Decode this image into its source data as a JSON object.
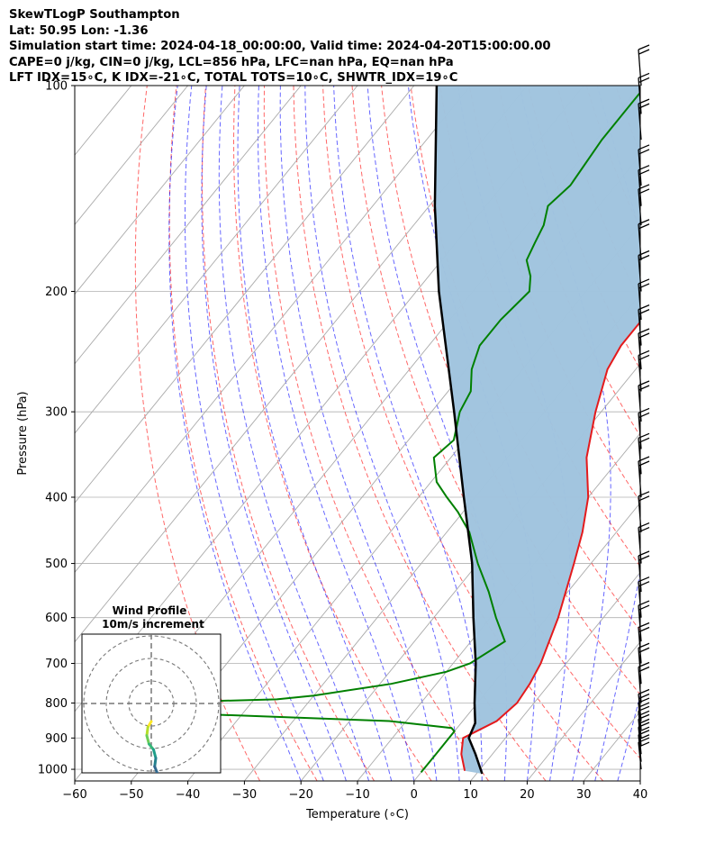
{
  "header": {
    "line1": "SkewTLogP Southampton",
    "line2": "Lat: 50.95   Lon: -1.36",
    "line3": "Simulation start time: 2024-04-18_00:00:00, Valid time: 2024-04-20T15:00:00.00",
    "line4": "CAPE=0 j/kg, CIN=0 j/kg, LCL=856 hPa, LFC=nan hPa, EQ=nan hPa",
    "line5": "LFT IDX=15∘C, K IDX=-21∘C, TOTAL TOTS=10∘C, SHWTR_IDX=19∘C"
  },
  "hodograph": {
    "title": "Wind Profile",
    "subtitle": "10m/s increment"
  },
  "chart_data": {
    "type": "line",
    "subtype": "skew-t log-p",
    "xlabel": "Temperature (∘C)",
    "ylabel": "Pressure (hPa)",
    "xlim": [
      -60,
      40
    ],
    "ylim": [
      1040,
      100
    ],
    "yscale": "log",
    "x_ticks": [
      "−60",
      "−50",
      "−40",
      "−30",
      "−20",
      "−10",
      "0",
      "10",
      "20",
      "30",
      "40"
    ],
    "y_ticks": [
      "100",
      "200",
      "300",
      "400",
      "500",
      "600",
      "700",
      "800",
      "900",
      "1000"
    ],
    "y_tick_values": [
      100,
      200,
      300,
      400,
      500,
      600,
      700,
      800,
      900,
      1000
    ],
    "grid": true,
    "colors": {
      "temperature": "#e41a1c",
      "dewpoint": "#008000",
      "parcel": "#000000",
      "shading": "#a0c4de",
      "dry_adiabat": "#ff0000",
      "moist_adiabat": "#0000ff",
      "isotherm": "#aaaaaa"
    },
    "series": [
      {
        "key": "temperature",
        "points": [
          [
            1005,
            7.5
          ],
          [
            950,
            4.5
          ],
          [
            900,
            2.5
          ],
          [
            850,
            6
          ],
          [
            800,
            7
          ],
          [
            750,
            6.5
          ],
          [
            700,
            5.5
          ],
          [
            600,
            2
          ],
          [
            500,
            -3
          ],
          [
            450,
            -6
          ],
          [
            400,
            -10
          ],
          [
            350,
            -16
          ],
          [
            300,
            -21
          ],
          [
            260,
            -25
          ],
          [
            240,
            -26
          ],
          [
            220,
            -26
          ],
          [
            200,
            -25
          ],
          [
            180,
            -22
          ],
          [
            170,
            -20
          ],
          [
            160,
            -20
          ],
          [
            150,
            -18
          ],
          [
            140,
            -15
          ],
          [
            130,
            -13
          ],
          [
            120,
            -11
          ],
          [
            110,
            -10
          ],
          [
            100,
            -10
          ]
        ]
      },
      {
        "key": "dewpoint",
        "points": [
          [
            1010,
            0
          ],
          [
            950,
            0
          ],
          [
            880,
            0
          ],
          [
            870,
            -1
          ],
          [
            850,
            -13
          ],
          [
            830,
            -48
          ],
          [
            820,
            -65
          ],
          [
            800,
            -60
          ],
          [
            790,
            -36
          ],
          [
            780,
            -30
          ],
          [
            750,
            -18
          ],
          [
            720,
            -10
          ],
          [
            700,
            -7
          ],
          [
            650,
            -4
          ],
          [
            600,
            -9
          ],
          [
            550,
            -14
          ],
          [
            500,
            -20
          ],
          [
            450,
            -26
          ],
          [
            420,
            -31
          ],
          [
            400,
            -35
          ],
          [
            380,
            -39
          ],
          [
            350,
            -43
          ],
          [
            330,
            -42
          ],
          [
            300,
            -45
          ],
          [
            280,
            -46
          ],
          [
            260,
            -49
          ],
          [
            240,
            -51
          ],
          [
            220,
            -51
          ],
          [
            200,
            -50
          ],
          [
            190,
            -52
          ],
          [
            180,
            -55
          ],
          [
            170,
            -56
          ],
          [
            160,
            -57
          ],
          [
            150,
            -59
          ],
          [
            140,
            -58
          ],
          [
            120,
            -59
          ],
          [
            110,
            -59
          ],
          [
            100,
            -59
          ]
        ]
      },
      {
        "key": "parcel",
        "points": [
          [
            1015,
            11
          ],
          [
            950,
            7
          ],
          [
            900,
            3.5
          ],
          [
            856,
            2.5
          ],
          [
            800,
            -0.5
          ],
          [
            700,
            -6
          ],
          [
            600,
            -13
          ],
          [
            500,
            -21
          ],
          [
            400,
            -32
          ],
          [
            300,
            -46
          ],
          [
            250,
            -55
          ],
          [
            200,
            -66
          ],
          [
            150,
            -79
          ],
          [
            100,
            -96
          ]
        ]
      }
    ],
    "wind_profile": [
      [
        0,
        0
      ],
      [
        -1.5,
        -1
      ],
      [
        -2,
        -2.5
      ],
      [
        -1,
        -4
      ],
      [
        1,
        -5
      ],
      [
        2,
        -6.5
      ],
      [
        1.5,
        -8
      ],
      [
        3,
        -9.5
      ]
    ],
    "rings_ms": [
      10,
      20,
      30
    ]
  }
}
